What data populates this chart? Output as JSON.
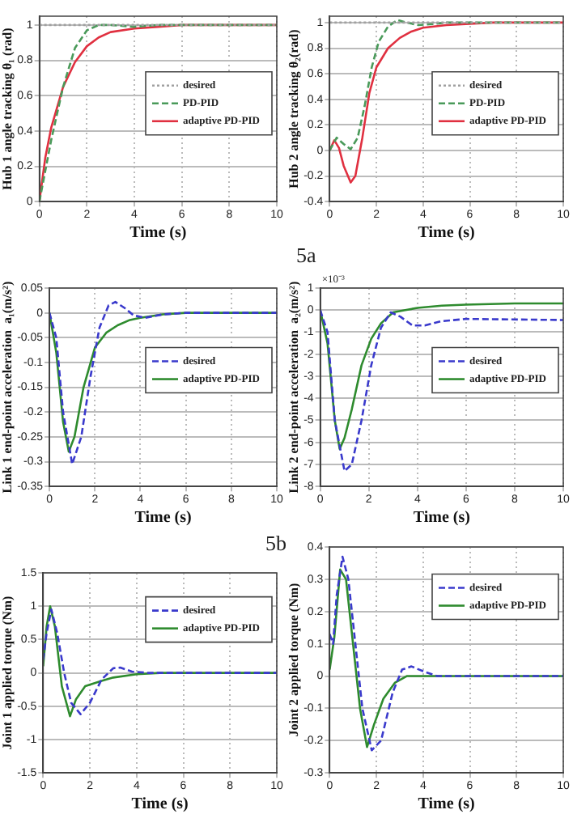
{
  "chart_data": [
    {
      "type": "line",
      "xlabel": "Time (s)",
      "ylabel": "Hub 1 angle tracking θ₁ (rad)",
      "xlim": [
        0,
        10
      ],
      "xticks": [
        0,
        2,
        4,
        6,
        8,
        10
      ],
      "ylim": [
        0,
        1.05
      ],
      "yticks": [
        0,
        0.2,
        0.4,
        0.6,
        0.8,
        1
      ],
      "grid": true,
      "legend": "right",
      "marker": "none",
      "series": [
        {
          "name": "desired",
          "color": "#a0a0a0",
          "line_style": "dotted",
          "x": [
            0,
            10
          ],
          "values": [
            1,
            1
          ]
        },
        {
          "name": "PD-PID",
          "color": "#4a9a5a",
          "line_style": "dashed",
          "x": [
            0,
            0.5,
            1,
            1.5,
            2,
            2.5,
            3,
            4,
            5,
            10
          ],
          "values": [
            0,
            0.35,
            0.65,
            0.87,
            0.97,
            1,
            1,
            0.99,
            1,
            1
          ]
        },
        {
          "name": "adaptive PD-PID",
          "color": "#e03040",
          "line_style": "solid",
          "x": [
            0,
            0.25,
            0.5,
            1,
            1.5,
            2,
            2.5,
            3,
            4,
            5,
            6,
            10
          ],
          "values": [
            0,
            0.25,
            0.42,
            0.65,
            0.79,
            0.88,
            0.93,
            0.96,
            0.98,
            0.99,
            1,
            1
          ]
        }
      ]
    },
    {
      "type": "line",
      "xlabel": "Time (s)",
      "ylabel": "Hub 2 angle tracking θ₂(rad)",
      "xlim": [
        0,
        10
      ],
      "xticks": [
        0,
        2,
        4,
        6,
        8,
        10
      ],
      "ylim": [
        -0.4,
        1.05
      ],
      "yticks": [
        -0.4,
        -0.2,
        0,
        0.2,
        0.4,
        0.6,
        0.8,
        1
      ],
      "grid": true,
      "legend": "right",
      "marker": "none",
      "annotations": [
        "5a"
      ],
      "series": [
        {
          "name": "desired",
          "color": "#a0a0a0",
          "line_style": "dotted",
          "x": [
            0,
            10
          ],
          "values": [
            1,
            1
          ]
        },
        {
          "name": "PD-PID",
          "color": "#4a9a5a",
          "line_style": "dashed",
          "x": [
            0,
            0.3,
            0.6,
            0.9,
            1.2,
            1.5,
            1.8,
            2.1,
            2.5,
            2.9,
            3.3,
            3.8,
            4.5,
            5,
            10
          ],
          "values": [
            0,
            0.1,
            0.05,
            0.01,
            0.1,
            0.35,
            0.65,
            0.85,
            0.97,
            1.02,
            1,
            0.98,
            0.99,
            1,
            1
          ]
        },
        {
          "name": "adaptive PD-PID",
          "color": "#e03040",
          "line_style": "solid",
          "x": [
            0,
            0.2,
            0.4,
            0.6,
            0.9,
            1.1,
            1.4,
            1.7,
            2,
            2.5,
            3,
            3.5,
            4,
            5,
            6,
            7,
            10
          ],
          "values": [
            0,
            0.08,
            0.02,
            -0.12,
            -0.25,
            -0.2,
            0.1,
            0.45,
            0.65,
            0.8,
            0.88,
            0.93,
            0.96,
            0.98,
            0.99,
            1,
            1
          ]
        }
      ]
    },
    {
      "type": "line",
      "xlabel": "Time (s)",
      "ylabel": "Link 1 end-point acceleration  a₁(m/s²)",
      "xlim": [
        0,
        10
      ],
      "xticks": [
        0,
        2,
        4,
        6,
        8,
        10
      ],
      "ylim": [
        -0.35,
        0.05
      ],
      "yticks": [
        -0.35,
        -0.3,
        -0.25,
        -0.2,
        -0.15,
        -0.1,
        -0.05,
        0,
        0.05
      ],
      "grid": true,
      "legend": "right",
      "marker": "none",
      "series": [
        {
          "name": "desired",
          "color": "#3a3acc",
          "line_style": "dashed",
          "x": [
            0,
            0.3,
            0.6,
            1,
            1.4,
            1.8,
            2.2,
            2.6,
            2.9,
            3.3,
            3.7,
            4.2,
            5,
            6,
            10
          ],
          "values": [
            0,
            -0.05,
            -0.2,
            -0.305,
            -0.25,
            -0.13,
            -0.03,
            0.015,
            0.022,
            0.01,
            -0.005,
            -0.01,
            -0.003,
            0,
            0
          ]
        },
        {
          "name": "adaptive PD-PID",
          "color": "#2e8b2e",
          "line_style": "solid",
          "x": [
            0,
            0.3,
            0.6,
            0.85,
            1.1,
            1.5,
            2,
            2.5,
            3,
            3.5,
            4,
            5,
            6,
            10
          ],
          "values": [
            0,
            -0.08,
            -0.22,
            -0.28,
            -0.25,
            -0.15,
            -0.07,
            -0.04,
            -0.025,
            -0.015,
            -0.01,
            -0.003,
            0,
            0
          ]
        }
      ]
    },
    {
      "type": "line",
      "xlabel": "Time (s)",
      "ylabel": "Link 2 end-point acceleration  a₂(m/s²)",
      "xlim": [
        0,
        10
      ],
      "xticks": [
        0,
        2,
        4,
        6,
        8,
        10
      ],
      "ylim": [
        -8,
        1
      ],
      "yticks": [
        -8,
        -7,
        -6,
        -5,
        -4,
        -3,
        -2,
        -1,
        0,
        1
      ],
      "grid": true,
      "legend": "right",
      "marker": "none",
      "annotations": [
        "×10⁻³"
      ],
      "series": [
        {
          "name": "desired",
          "color": "#3a3acc",
          "line_style": "dashed",
          "x": [
            0,
            0.3,
            0.6,
            1,
            1.3,
            1.7,
            2.1,
            2.5,
            2.9,
            3.3,
            3.8,
            4.3,
            5,
            6,
            10
          ],
          "values": [
            0,
            -1,
            -5,
            -7.3,
            -7,
            -5,
            -2.5,
            -0.8,
            -0.1,
            -0.3,
            -0.7,
            -0.7,
            -0.5,
            -0.4,
            -0.45
          ]
        },
        {
          "name": "adaptive PD-PID",
          "color": "#2e8b2e",
          "line_style": "solid",
          "x": [
            0,
            0.3,
            0.6,
            0.8,
            1,
            1.3,
            1.7,
            2.1,
            2.5,
            3,
            3.5,
            4,
            5,
            6,
            8,
            10
          ],
          "values": [
            0,
            -1.5,
            -5,
            -6.3,
            -5.8,
            -4.5,
            -2.5,
            -1.3,
            -0.6,
            -0.1,
            0,
            0.1,
            0.2,
            0.25,
            0.3,
            0.3
          ]
        }
      ]
    },
    {
      "type": "line",
      "xlabel": "Time (s)",
      "ylabel": "Joint 1 applied torque (Nm)",
      "xlim": [
        0,
        10
      ],
      "xticks": [
        0,
        2,
        4,
        6,
        8,
        10
      ],
      "ylim": [
        -1.5,
        1.5
      ],
      "yticks": [
        -1.5,
        -1,
        -0.5,
        0,
        0.5,
        1,
        1.5
      ],
      "grid": true,
      "legend": "top right",
      "marker": "none",
      "annotations": [
        "5b"
      ],
      "series": [
        {
          "name": "desired",
          "color": "#3a3acc",
          "line_style": "dashed",
          "x": [
            0,
            0.15,
            0.35,
            0.6,
            0.9,
            1.2,
            1.6,
            2,
            2.5,
            3,
            3.3,
            3.8,
            4.5,
            10
          ],
          "values": [
            0.2,
            0.6,
            0.95,
            0.6,
            0,
            -0.45,
            -0.62,
            -0.45,
            -0.1,
            0.07,
            0.08,
            0.02,
            0,
            0
          ]
        },
        {
          "name": "adaptive PD-PID",
          "color": "#2e8b2e",
          "line_style": "solid",
          "x": [
            0,
            0.15,
            0.3,
            0.5,
            0.8,
            1.15,
            1.4,
            1.8,
            2.5,
            3,
            4,
            5,
            10
          ],
          "values": [
            0.1,
            0.7,
            1,
            0.7,
            -0.2,
            -0.65,
            -0.4,
            -0.2,
            -0.12,
            -0.07,
            -0.02,
            0,
            0
          ]
        }
      ]
    },
    {
      "type": "line",
      "xlabel": "Time (s)",
      "ylabel": "Joint 2 applied torque (Nm)",
      "xlim": [
        0,
        10
      ],
      "xticks": [
        0,
        2,
        4,
        6,
        8,
        10
      ],
      "ylim": [
        -0.3,
        0.4
      ],
      "yticks": [
        -0.3,
        -0.2,
        -0.1,
        0,
        0.1,
        0.2,
        0.3,
        0.4
      ],
      "grid": true,
      "legend": "top right",
      "marker": "none",
      "series": [
        {
          "name": "desired",
          "color": "#3a3acc",
          "line_style": "dashed",
          "x": [
            0,
            0.15,
            0.3,
            0.55,
            0.8,
            1.1,
            1.4,
            1.8,
            2.2,
            2.7,
            3.1,
            3.5,
            4,
            4.6,
            10
          ],
          "values": [
            0.13,
            0.1,
            0.25,
            0.37,
            0.3,
            0.1,
            -0.1,
            -0.23,
            -0.2,
            -0.05,
            0.02,
            0.03,
            0.015,
            0,
            0
          ]
        },
        {
          "name": "adaptive PD-PID",
          "color": "#2e8b2e",
          "line_style": "solid",
          "x": [
            0,
            0.2,
            0.45,
            0.7,
            1,
            1.3,
            1.6,
            1.9,
            2.3,
            2.8,
            3.3,
            4,
            10
          ],
          "values": [
            0.02,
            0.12,
            0.33,
            0.3,
            0.1,
            -0.1,
            -0.22,
            -0.15,
            -0.07,
            -0.02,
            0,
            0,
            0
          ]
        }
      ]
    }
  ]
}
